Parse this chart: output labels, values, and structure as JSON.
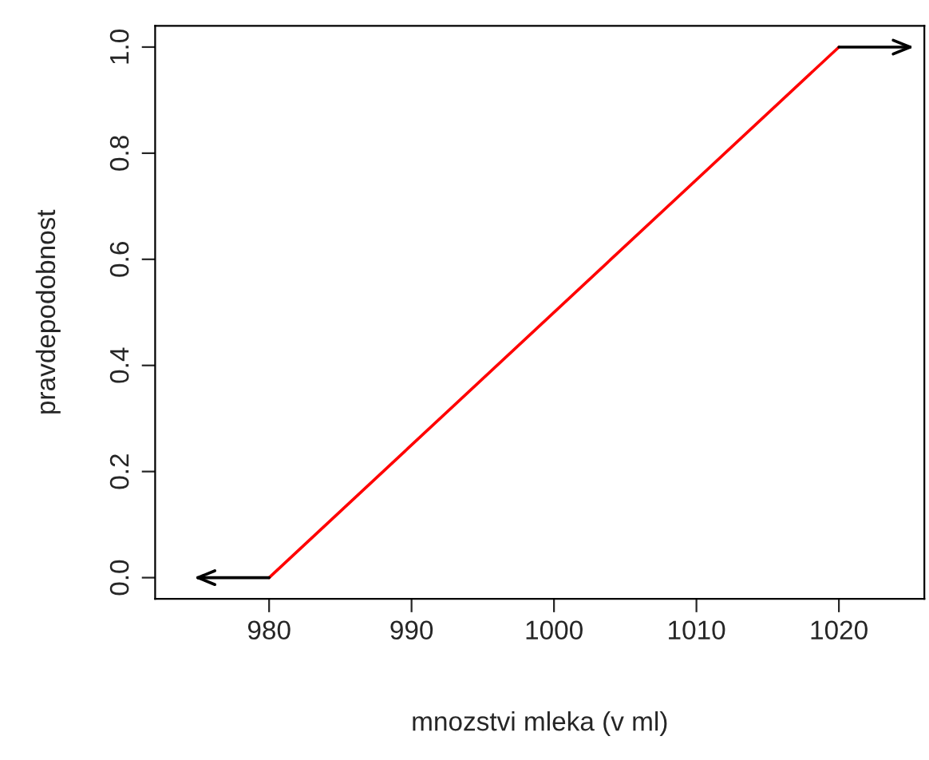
{
  "chart_data": {
    "type": "line",
    "xlabel": "mnozstvi mleka (v ml)",
    "ylabel": "pravdepodobnost",
    "series": [
      {
        "color": "#ff0000",
        "x": [
          980,
          1020
        ],
        "values": [
          0,
          1
        ]
      },
      {
        "color": "#000000",
        "x": [
          980,
          975
        ],
        "values": [
          0,
          0
        ]
      },
      {
        "color": "#000000",
        "x": [
          1020,
          1025
        ],
        "values": [
          1,
          1
        ]
      }
    ],
    "xlim": [
      972,
      1026
    ],
    "ylim": [
      -0.04,
      1.04
    ],
    "xticks": [
      980,
      990,
      1000,
      1010,
      1020
    ],
    "yticks": [
      {
        "value": 0,
        "label": "0.0"
      },
      {
        "value": 0.2,
        "label": "0.2"
      },
      {
        "value": 0.4,
        "label": "0.4"
      },
      {
        "value": 0.6,
        "label": "0.6"
      },
      {
        "value": 0.8,
        "label": "0.8"
      },
      {
        "value": 1,
        "label": "1.0"
      }
    ],
    "grid": false,
    "legend": false,
    "marker": "none",
    "line_style": "solid"
  }
}
